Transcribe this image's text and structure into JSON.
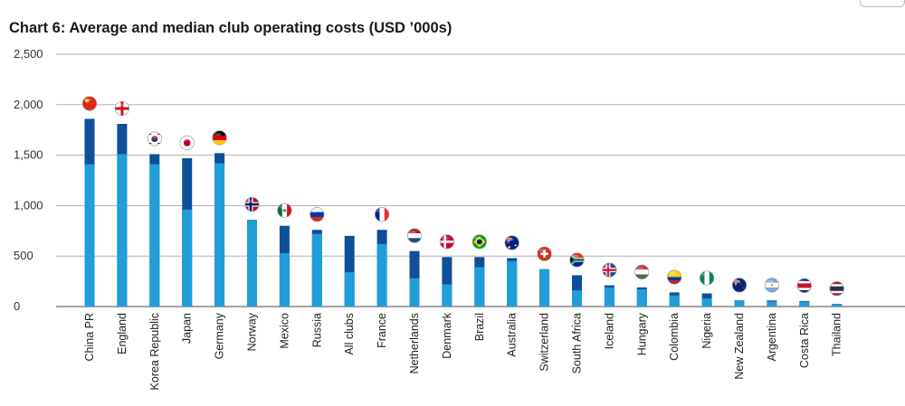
{
  "chart_data": {
    "type": "bar",
    "title": "Chart 6: Average and median club operating costs (USD ’000s)",
    "xlabel": "",
    "ylabel": "",
    "ylim": [
      0,
      2500
    ],
    "yticks": [
      "0",
      "500",
      "1,000",
      "1,500",
      "2,000",
      "2,500"
    ],
    "ytick_values": [
      0,
      500,
      1000,
      1500,
      2000,
      2500
    ],
    "categories": [
      "China PR",
      "England",
      "Korea Republic",
      "Japan",
      "Germany",
      "Norway",
      "Mexico",
      "Russia",
      "All clubs",
      "France",
      "Netherlands",
      "Denmark",
      "Brazil",
      "Australia",
      "Switzerland",
      "South Africa",
      "Iceland",
      "Hungary",
      "Colombia",
      "Nigeria",
      "New Zealand",
      "Argentina",
      "Costa Rica",
      "Thailand"
    ],
    "series": [
      {
        "values": [
          1860,
          1810,
          1510,
          1470,
          1520,
          860,
          800,
          760,
          700,
          760,
          550,
          490,
          490,
          480,
          370,
          310,
          210,
          190,
          140,
          130,
          60,
          60,
          55,
          25
        ]
      },
      {
        "values": [
          1410,
          1510,
          1410,
          960,
          1420,
          860,
          530,
          720,
          340,
          620,
          280,
          220,
          390,
          450,
          370,
          160,
          190,
          170,
          110,
          80,
          55,
          50,
          50,
          20
        ]
      }
    ],
    "colors": {
      "average": "#0d4f98",
      "median": "#1f9ed9",
      "grid": "#a8a8a8",
      "axis": "#6e6e6e"
    },
    "flags": [
      "china-flag-icon",
      "england-flag-icon",
      "korea-flag-icon",
      "japan-flag-icon",
      "germany-flag-icon",
      "norway-flag-icon",
      "mexico-flag-icon",
      "russia-flag-icon",
      "",
      "france-flag-icon",
      "netherlands-flag-icon",
      "denmark-flag-icon",
      "brazil-flag-icon",
      "australia-flag-icon",
      "switzerland-flag-icon",
      "south-africa-flag-icon",
      "iceland-flag-icon",
      "hungary-flag-icon",
      "colombia-flag-icon",
      "nigeria-flag-icon",
      "new-zealand-flag-icon",
      "argentina-flag-icon",
      "costa-rica-flag-icon",
      "thailand-flag-icon"
    ]
  }
}
